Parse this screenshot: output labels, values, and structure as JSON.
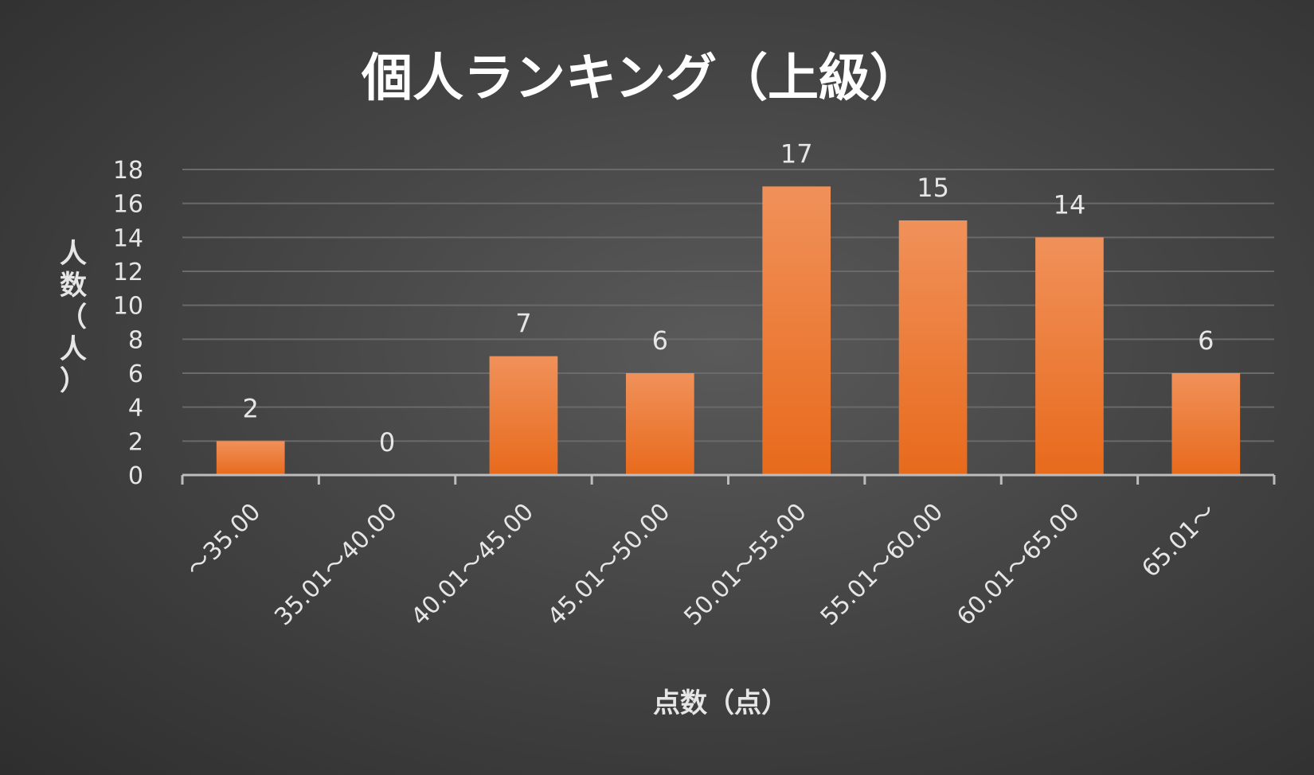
{
  "chart_data": {
    "type": "bar",
    "title": "個人ランキング（上級）",
    "xlabel": "点数（点）",
    "ylabel": "人数（人）",
    "categories": [
      "～35.00",
      "35.01～40.00",
      "40.01～45.00",
      "45.01～50.00",
      "50.01～55.00",
      "55.01～60.00",
      "60.01～65.00",
      "65.01～"
    ],
    "values": [
      2,
      0,
      7,
      6,
      17,
      15,
      14,
      6
    ],
    "ylim": [
      0,
      18
    ],
    "yticks": [
      "0",
      "2",
      "4",
      "6",
      "8",
      "10",
      "12",
      "14",
      "16",
      "18"
    ],
    "data_labels": true,
    "grid": true,
    "colors": {
      "bar_top": "#f0915a",
      "bar_bottom": "#e86a1c",
      "grid": "#6a6a6a",
      "axis": "#bdbdbd"
    }
  }
}
